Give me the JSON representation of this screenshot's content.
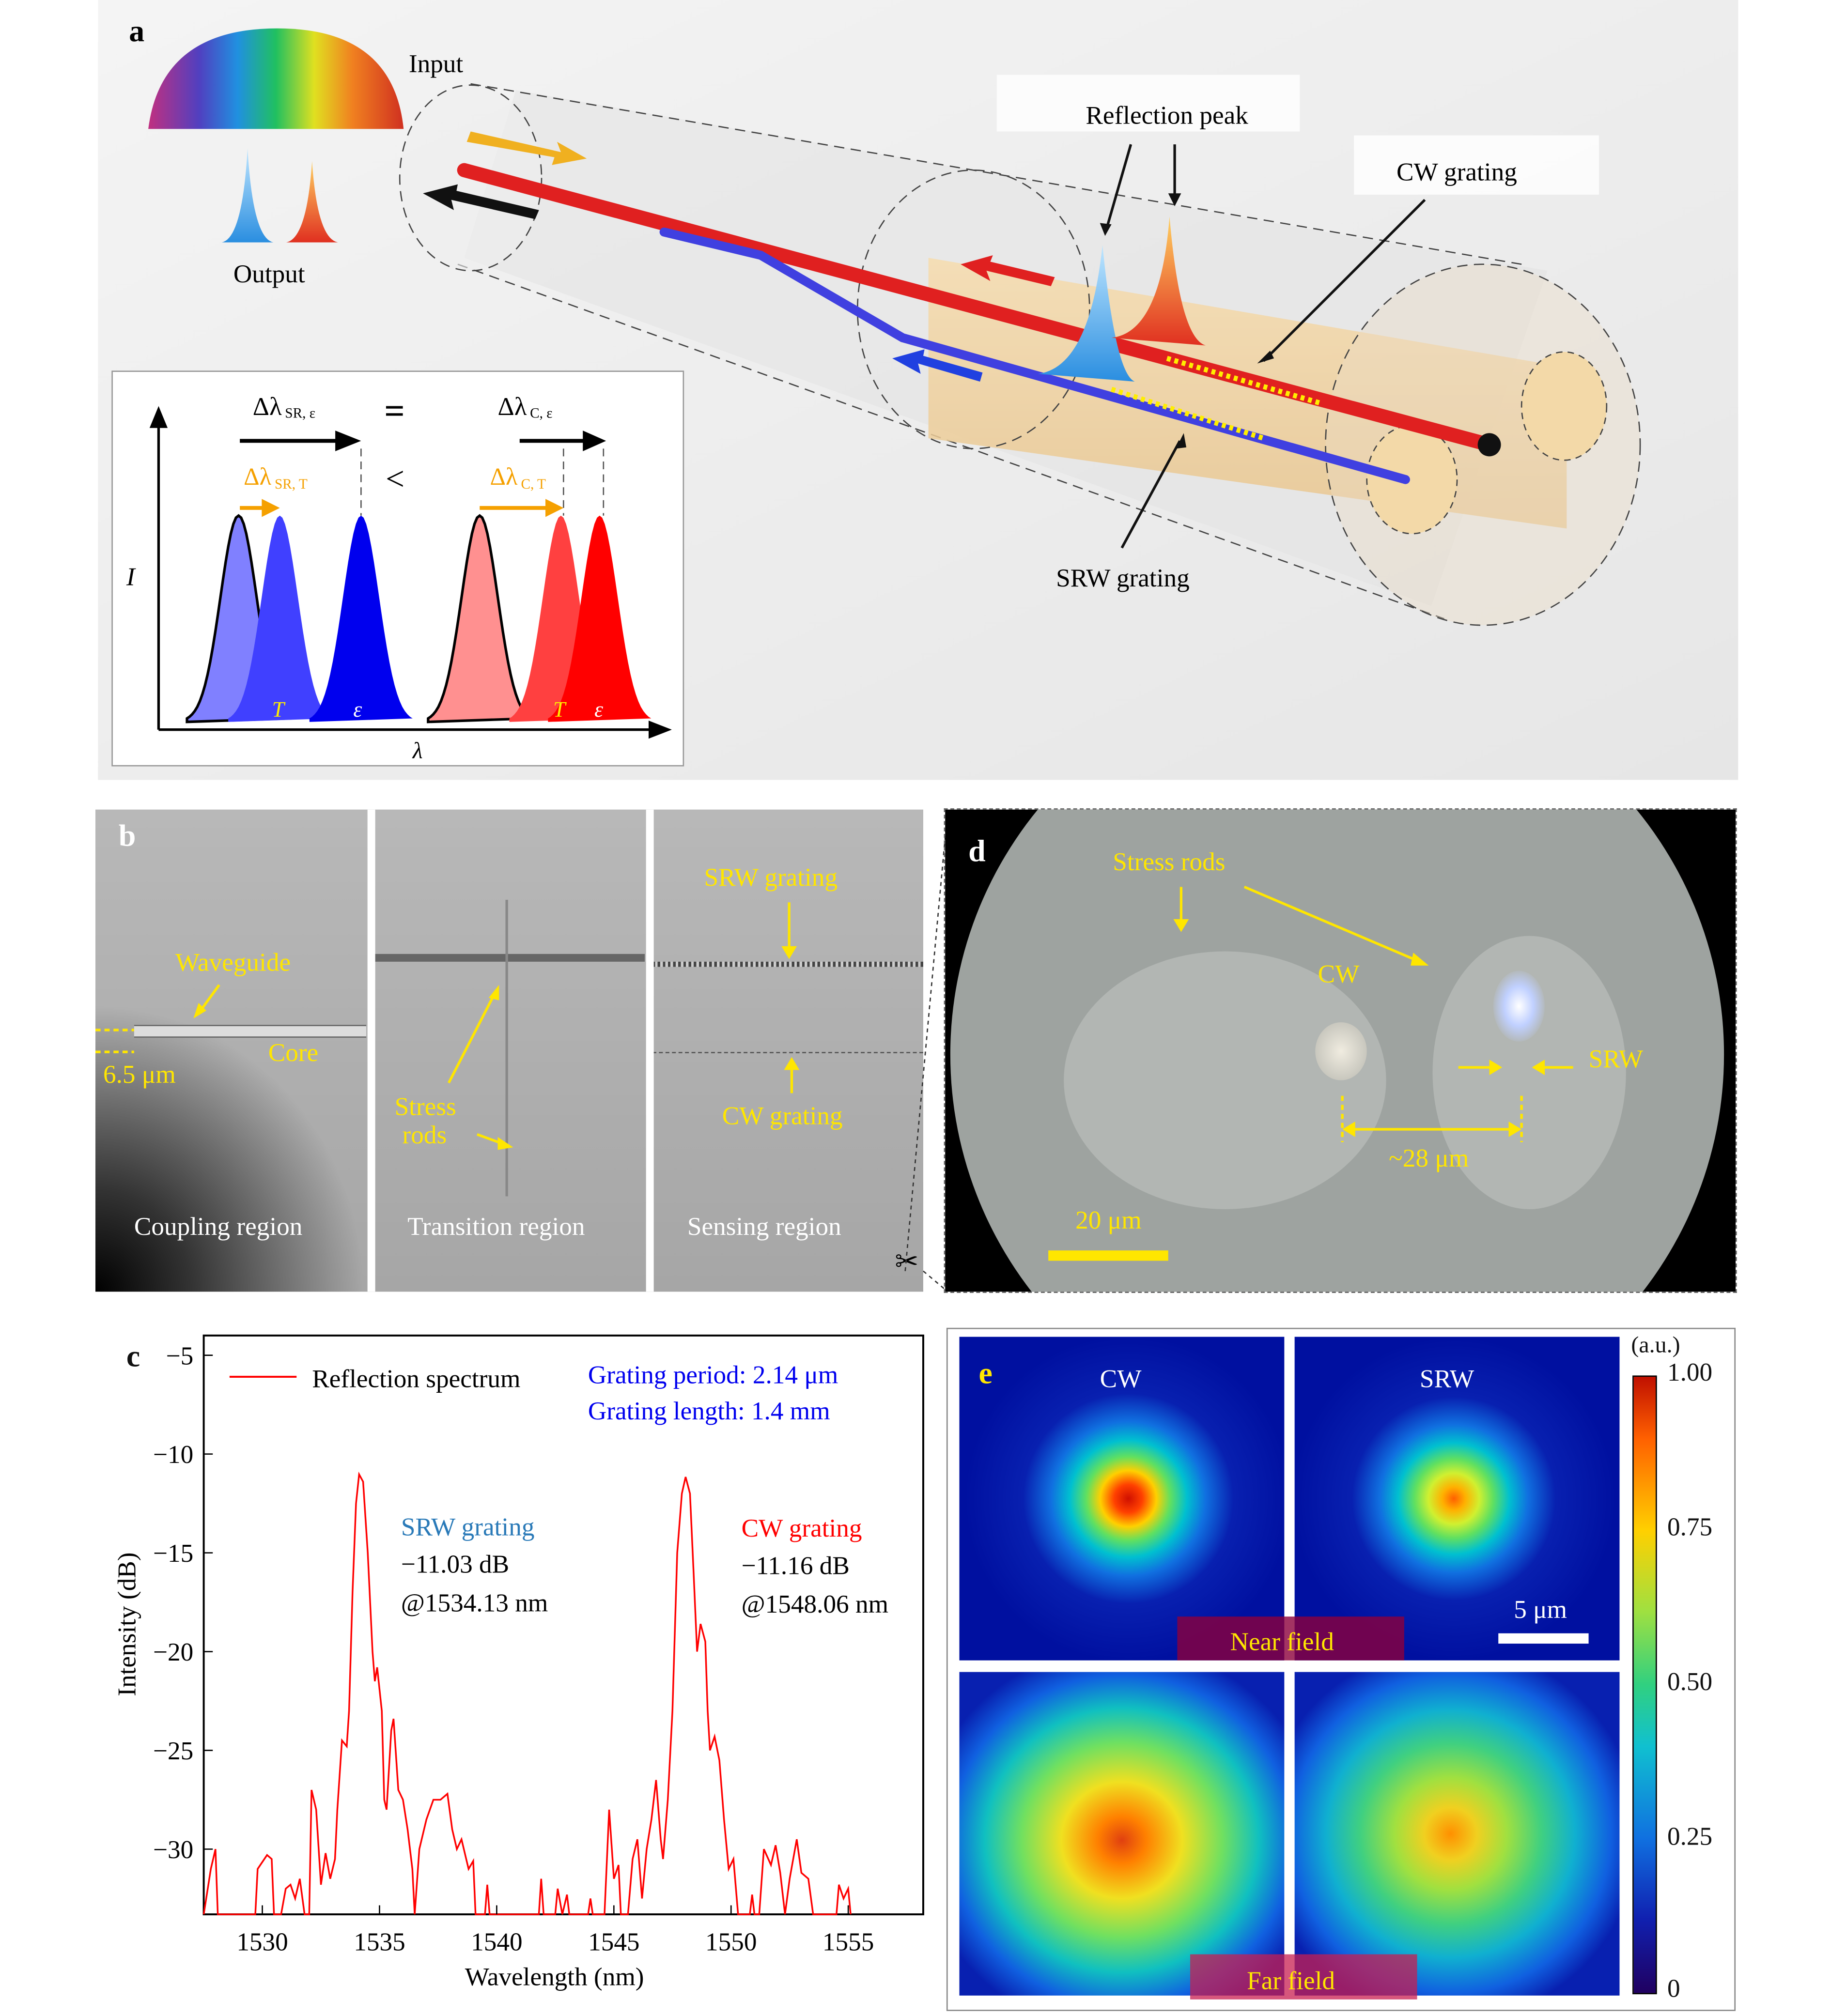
{
  "panel_a": {
    "letter": "a",
    "input_label": "Input",
    "output_label": "Output",
    "reflection_peak_label": "Reflection peak",
    "cw_grating_label": "CW grating",
    "srw_grating_label": "SRW grating",
    "inset": {
      "delta_sr_eps": "Δλ",
      "delta_sr_eps_sub": "SR, ε",
      "equals": "=",
      "delta_c_eps": "Δλ",
      "delta_c_eps_sub": "C, ε",
      "delta_sr_t": "Δλ",
      "delta_sr_t_sub": "SR, T",
      "less_than": "<",
      "delta_c_t": "Δλ",
      "delta_c_t_sub": "C, T",
      "y_axis": "I",
      "x_axis": "λ",
      "t_label": "T",
      "eps_label": "ε",
      "colors": {
        "srw": "#0000ee",
        "cw": "#ff0000",
        "shift": "#f5a000"
      }
    }
  },
  "panel_b": {
    "letter": "b",
    "waveguide": "Waveguide",
    "core": "Core",
    "core_size": "6.5 μm",
    "stress": "Stress",
    "rods": "rods",
    "srw_grating": "SRW grating",
    "cw_grating": "CW grating",
    "regions": [
      "Coupling region",
      "Transition region",
      "Sensing region"
    ]
  },
  "panel_d": {
    "letter": "d",
    "stress_rods": "Stress rods",
    "cw": "CW",
    "srw": "SRW",
    "separation": "~28 μm",
    "scale_bar": "20 μm"
  },
  "panel_e": {
    "letter": "e",
    "cw": "CW",
    "srw": "SRW",
    "near_field": "Near field",
    "far_field": "Far field",
    "scale_bar": "5 μm",
    "colorbar_unit": "(a.u.)",
    "colorbar_ticks": [
      "1.00",
      "0.75",
      "0.50",
      "0.25",
      "0"
    ]
  },
  "chart_data": {
    "type": "line",
    "panel_letter": "c",
    "xlabel": "Wavelength (nm)",
    "ylabel": "Intensity (dB)",
    "xlim": [
      1527.5,
      1558.2
    ],
    "ylim": [
      -33.3,
      -4.0
    ],
    "xticks": [
      1530,
      1535,
      1540,
      1545,
      1550,
      1555
    ],
    "yticks": [
      -5,
      -10,
      -15,
      -20,
      -25,
      -30
    ],
    "xtick_labels": [
      "1530",
      "1535",
      "1540",
      "1545",
      "1550",
      "1555"
    ],
    "ytick_labels": [
      "−5",
      "−10",
      "−15",
      "−20",
      "−25",
      "−30"
    ],
    "legend": "Reflection spectrum",
    "legend_position": "top-left",
    "grating_period": "Grating period: 2.14 μm",
    "grating_length": "Grating length: 1.4 mm",
    "annotations": {
      "srw_title": "SRW grating",
      "srw_db": "−11.03 dB",
      "srw_wl": "@1534.13 nm",
      "cw_title": "CW grating",
      "cw_db": "−11.16 dB",
      "cw_wl": "@1548.06 nm"
    },
    "series": [
      {
        "name": "Reflection spectrum",
        "color": "#ff0000",
        "x": [
          1527.5,
          1527.8,
          1528.0,
          1528.1,
          1529.7,
          1529.8,
          1530.2,
          1530.4,
          1530.5,
          1530.8,
          1531.0,
          1531.2,
          1531.4,
          1531.6,
          1531.8,
          1532.0,
          1532.1,
          1532.3,
          1532.5,
          1532.7,
          1532.9,
          1533.1,
          1533.2,
          1533.4,
          1533.6,
          1533.7,
          1533.85,
          1534.0,
          1534.13,
          1534.3,
          1534.5,
          1534.7,
          1534.8,
          1534.9,
          1535.1,
          1535.2,
          1535.3,
          1535.5,
          1535.6,
          1535.8,
          1536.0,
          1536.2,
          1536.4,
          1536.5,
          1536.7,
          1537.0,
          1537.3,
          1537.6,
          1537.9,
          1538.1,
          1538.3,
          1538.5,
          1538.8,
          1539.0,
          1539.1,
          1539.5,
          1539.6,
          1539.7,
          1541.8,
          1541.9,
          1542.0,
          1542.5,
          1542.6,
          1542.8,
          1543.0,
          1543.1,
          1543.9,
          1544.0,
          1544.1,
          1544.6,
          1544.8,
          1545.0,
          1545.2,
          1545.3,
          1545.6,
          1545.8,
          1546.0,
          1546.2,
          1546.4,
          1546.6,
          1546.8,
          1547.0,
          1547.1,
          1547.3,
          1547.5,
          1547.7,
          1547.9,
          1548.06,
          1548.25,
          1548.4,
          1548.55,
          1548.7,
          1548.9,
          1549.0,
          1549.1,
          1549.3,
          1549.5,
          1549.7,
          1549.9,
          1550.1,
          1550.3,
          1550.8,
          1550.9,
          1551.0,
          1551.2,
          1551.4,
          1551.7,
          1551.9,
          1552.1,
          1552.3,
          1552.5,
          1552.8,
          1553.0,
          1553.3,
          1553.5,
          1554.5,
          1554.6,
          1554.8,
          1555.0,
          1555.1
        ],
        "y": [
          -33.3,
          -31,
          -30,
          -33.3,
          -33.3,
          -31,
          -30.3,
          -30.5,
          -33.3,
          -33.3,
          -32,
          -31.8,
          -32.5,
          -31.5,
          -33.3,
          -33.3,
          -27,
          -28,
          -31.8,
          -30.2,
          -31.5,
          -30.5,
          -28,
          -24.5,
          -24.8,
          -23,
          -17,
          -12.5,
          -11.03,
          -11.4,
          -15,
          -20,
          -21.5,
          -20.8,
          -23,
          -27.5,
          -28,
          -24,
          -23.4,
          -27,
          -27.5,
          -29,
          -31,
          -33.3,
          -30,
          -28.5,
          -27.5,
          -27.5,
          -27.2,
          -29,
          -30,
          -29.5,
          -31,
          -30.6,
          -33.3,
          -33.3,
          -31.8,
          -33.3,
          -33.3,
          -31.5,
          -33.3,
          -33.3,
          -32,
          -33.3,
          -32.3,
          -33.3,
          -33.3,
          -32.5,
          -33.3,
          -33.3,
          -28,
          -31.5,
          -30.8,
          -33.3,
          -33.3,
          -30.5,
          -29.5,
          -32.5,
          -30,
          -28.5,
          -26.5,
          -29.5,
          -30.5,
          -27.5,
          -23,
          -15,
          -12,
          -11.16,
          -12,
          -16,
          -20,
          -18.6,
          -19.5,
          -23,
          -25,
          -24.3,
          -25.5,
          -28.5,
          -31,
          -30.5,
          -33.3,
          -33.3,
          -32.3,
          -33.3,
          -33.3,
          -30,
          -30.8,
          -29.8,
          -31.2,
          -33.3,
          -31.5,
          -29.5,
          -31.2,
          -31.5,
          -33.3,
          -33.3,
          -31.8,
          -32.5,
          -32,
          -33.3
        ]
      }
    ]
  }
}
